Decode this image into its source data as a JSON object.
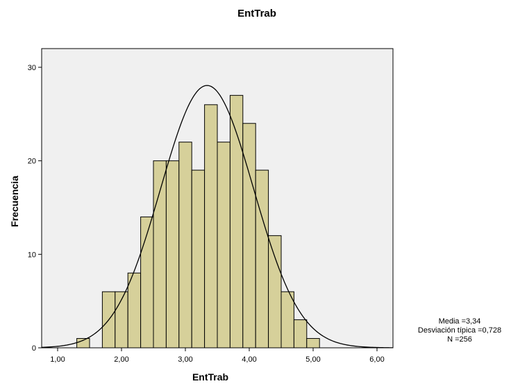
{
  "chart_data": {
    "type": "bar",
    "title": "EntTrab",
    "xlabel": "EntTrab",
    "ylabel": "Frecuencia",
    "xlim": [
      0.75,
      6.25
    ],
    "ylim": [
      0,
      32
    ],
    "x_ticks": [
      1,
      2,
      3,
      4,
      5,
      6
    ],
    "x_tick_labels": [
      "1,00",
      "2,00",
      "3,00",
      "4,00",
      "5,00",
      "6,00"
    ],
    "y_ticks": [
      0,
      10,
      20,
      30
    ],
    "y_tick_labels": [
      "0",
      "10",
      "20",
      "30"
    ],
    "bin_width": 0.2,
    "bin_starts": [
      1.3,
      1.5,
      1.7,
      1.9,
      2.1,
      2.3,
      2.5,
      2.7,
      2.9,
      3.1,
      3.3,
      3.5,
      3.7,
      3.9,
      4.1,
      4.3,
      4.5,
      4.7,
      4.9
    ],
    "values": [
      1,
      0,
      6,
      6,
      8,
      14,
      20,
      20,
      22,
      19,
      26,
      22,
      27,
      24,
      19,
      12,
      6,
      3,
      1
    ],
    "normal_curve": {
      "mean": 3.34,
      "sd": 0.728,
      "n": 256
    },
    "bar_color": "#d6d09a",
    "plot_bg": "#f0f0f0",
    "stats_lines": [
      "Media =3,34",
      "Desviación típica =0,728",
      "N =256"
    ]
  }
}
